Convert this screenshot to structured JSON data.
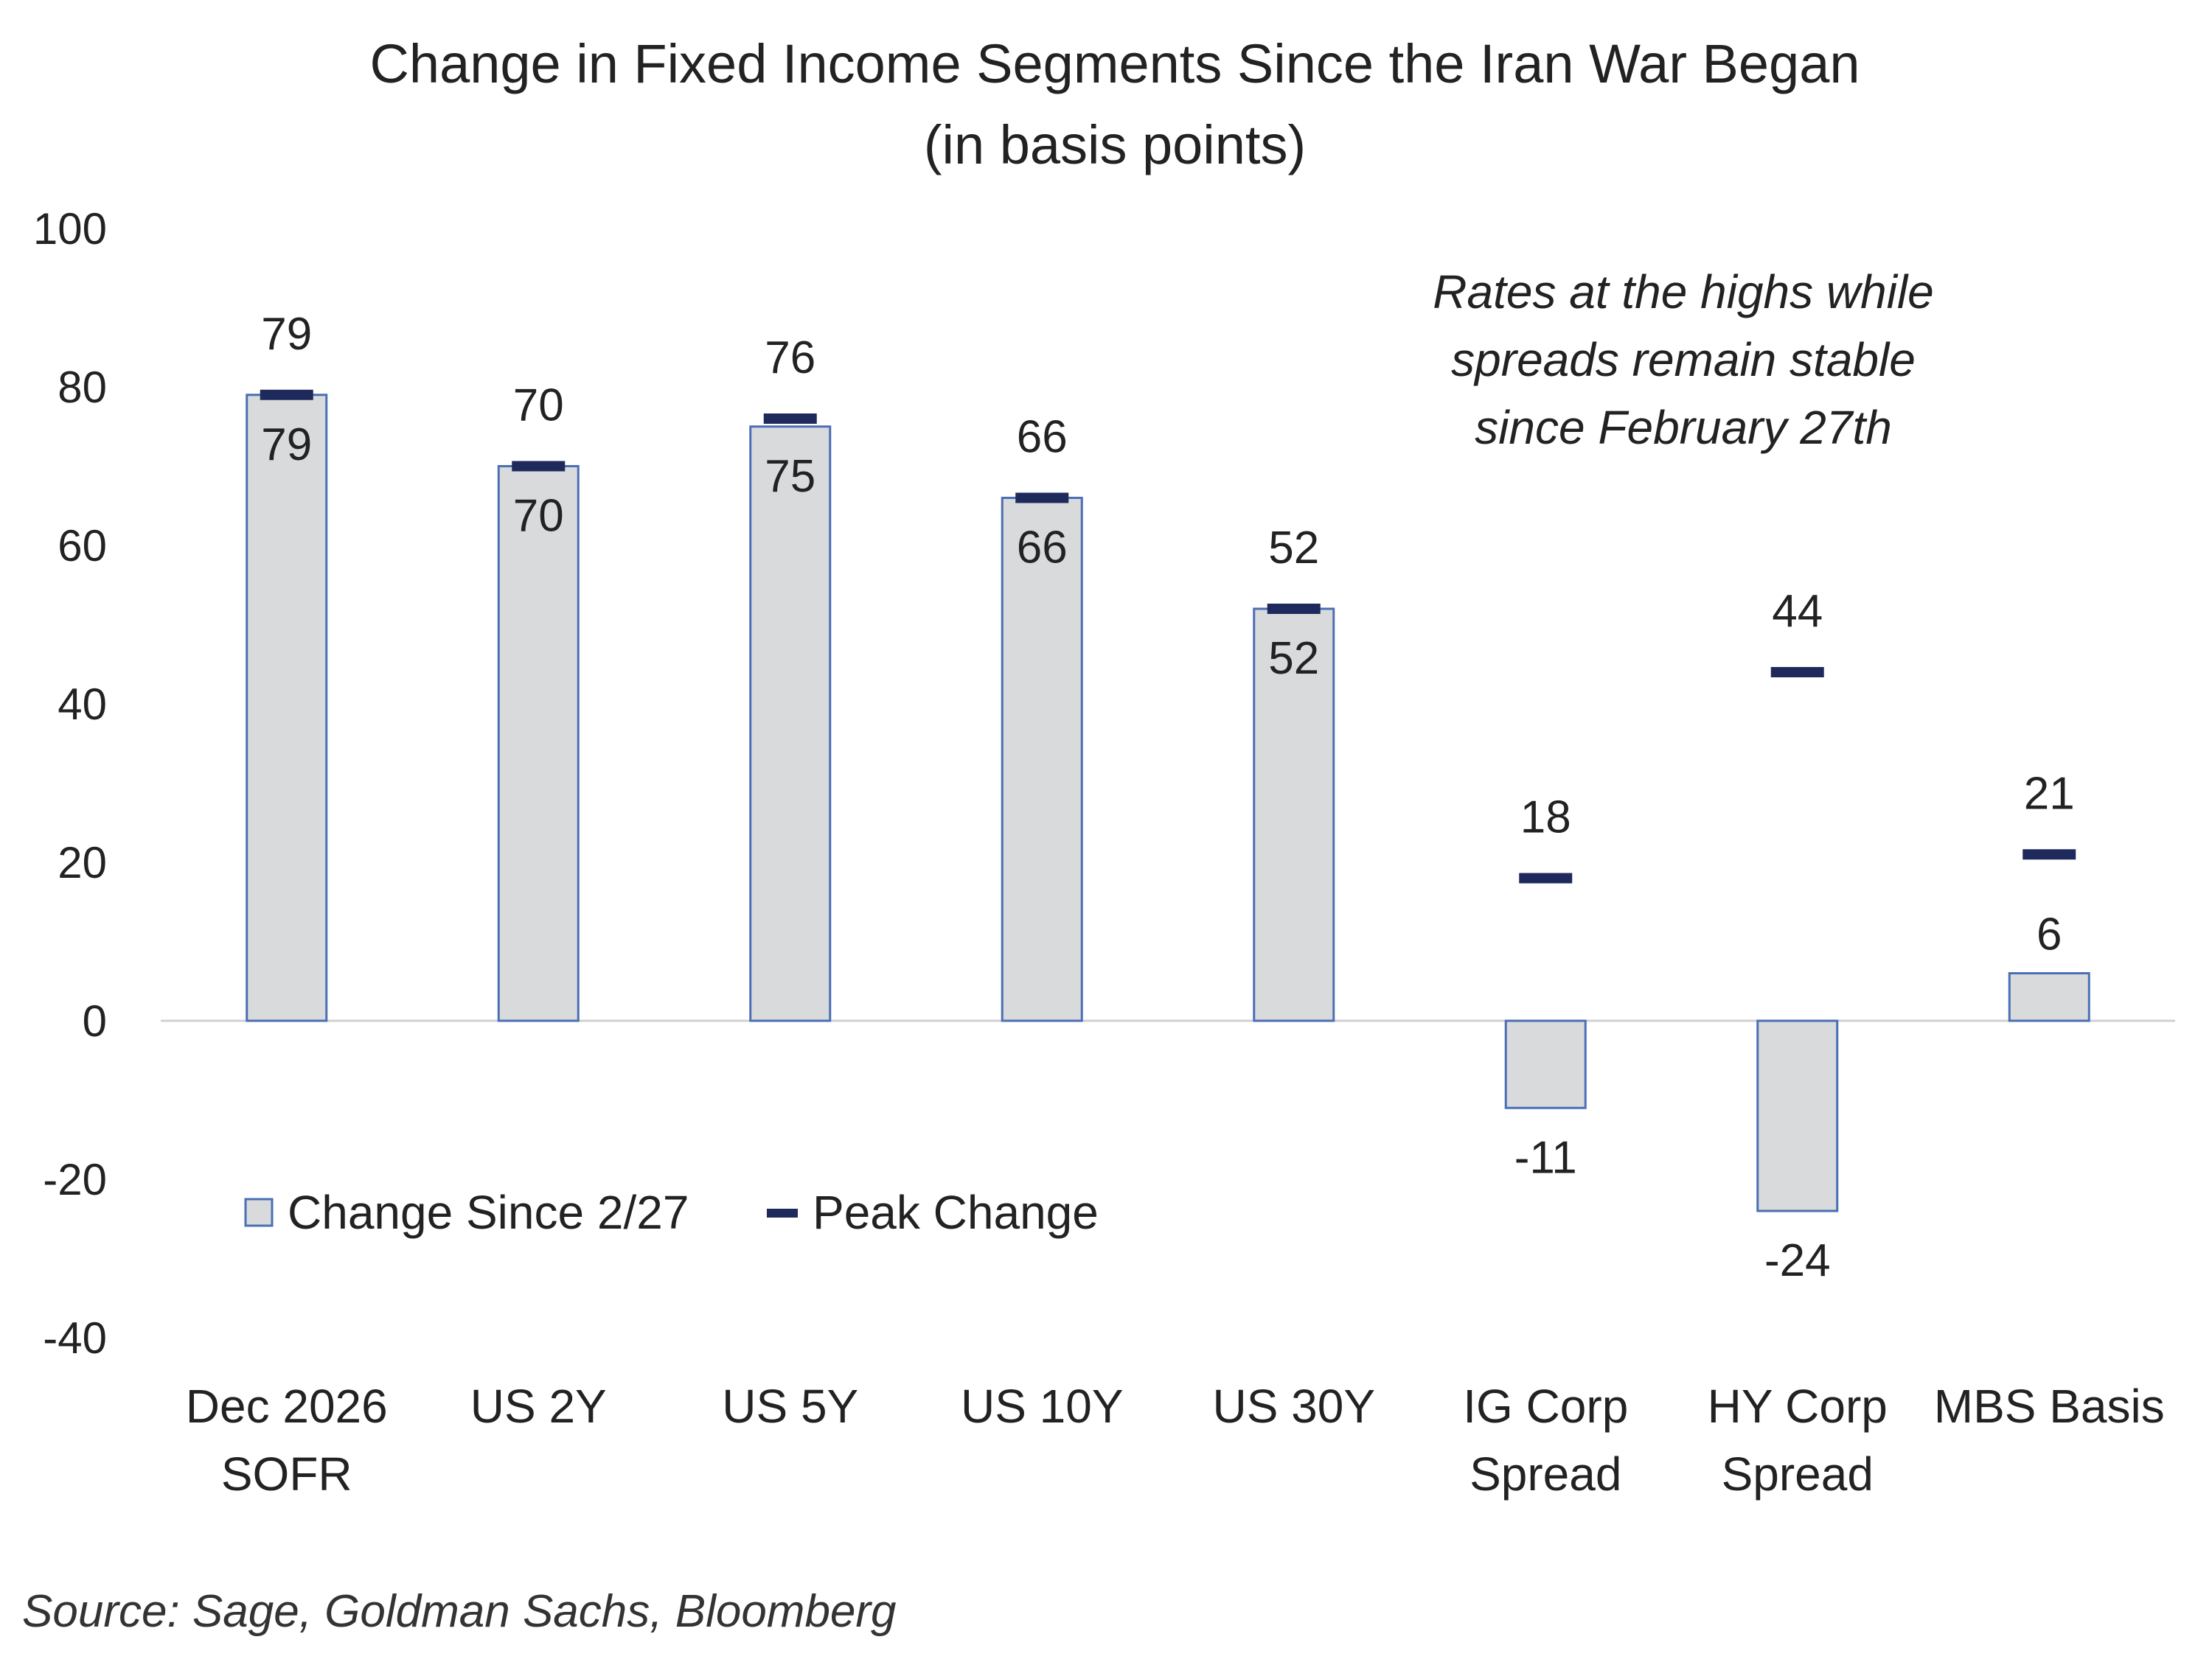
{
  "chart_data": {
    "type": "bar",
    "title": "Change in Fixed Income Segments Since the Iran War Began",
    "subtitle": "(in basis points)",
    "categories": [
      "Dec 2026\nSOFR",
      "US 2Y",
      "US 5Y",
      "US 10Y",
      "US 30Y",
      "IG Corp\nSpread",
      "HY Corp\nSpread",
      "MBS Basis"
    ],
    "series": [
      {
        "name": "Change Since 2/27",
        "kind": "bar",
        "values": [
          79,
          70,
          75,
          66,
          52,
          -11,
          -24,
          6
        ]
      },
      {
        "name": "Peak Change",
        "kind": "marker",
        "values": [
          79,
          70,
          76,
          66,
          52,
          18,
          44,
          21
        ]
      }
    ],
    "ylim": [
      -40,
      100
    ],
    "yticks": [
      -40,
      -20,
      0,
      20,
      40,
      60,
      80,
      100
    ],
    "grid": false,
    "legend_position": "lower-left",
    "annotation": [
      "Rates at the highs while",
      "spreads remain stable",
      "since February 27th"
    ],
    "source": "Source: Sage, Goldman Sachs, Bloomberg",
    "colors": {
      "bar_fill": "#d9dadc",
      "bar_stroke": "#4a6fb5",
      "marker": "#1f2a5c",
      "axis": "#d0d0d0",
      "text": "#222222"
    }
  }
}
